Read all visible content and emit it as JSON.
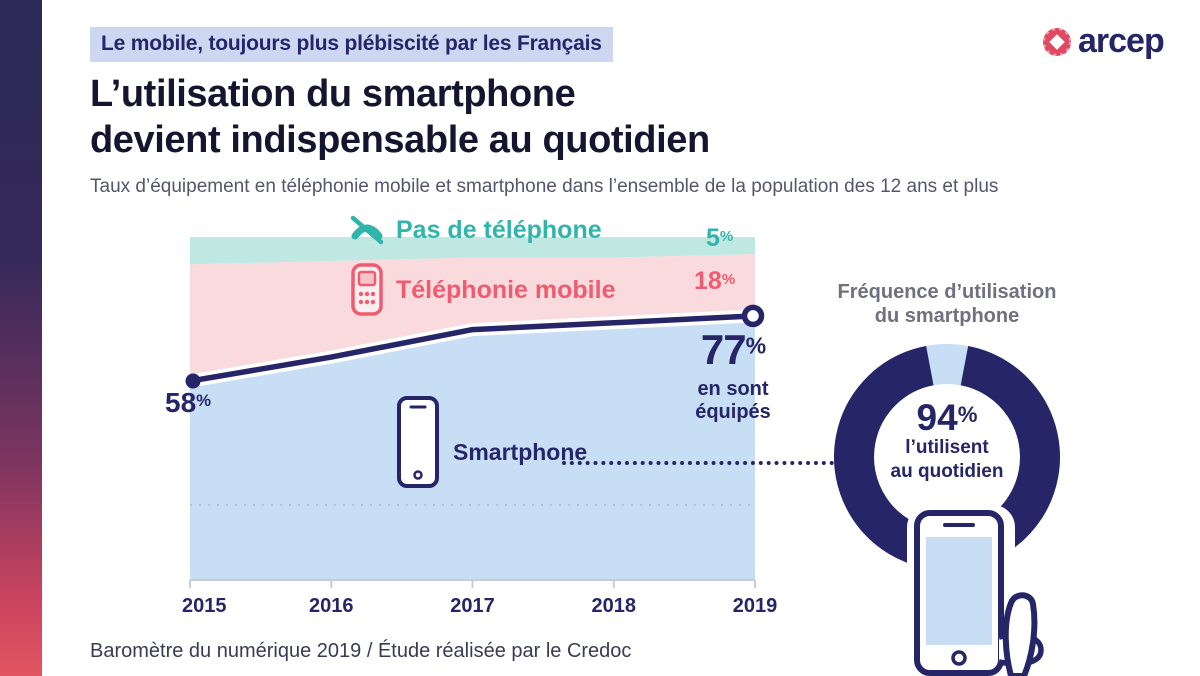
{
  "page": {
    "kicker": "Le mobile, toujours plus plébiscité par les Français",
    "logo_text": "arcep",
    "title_line1": "L’utilisation du smartphone",
    "title_line2": "devient indispensable au quotidien",
    "subtitle": "Taux d’équipement en téléphonie mobile et smartphone dans l’ensemble de la population des 12 ans et plus",
    "footer": "Baromètre du numérique 2019 / Étude réalisée par le Credoc"
  },
  "colors": {
    "navy": "#252567",
    "teal_text": "#2fb5ab",
    "teal_band": "#c0e8e2",
    "pink_text": "#ef5b70",
    "pink_band": "#f9dbde",
    "blue_band": "#c7def5",
    "kicker_bg": "#cdd7f1",
    "logo_red": "#e04962"
  },
  "chart_data": [
    {
      "type": "area",
      "stacked": true,
      "x": [
        "2015",
        "2016",
        "2017",
        "2018",
        "2019"
      ],
      "ylim": [
        0,
        100
      ],
      "series": [
        {
          "name": "Pas de téléphone",
          "values": [
            8,
            7,
            6,
            6,
            5
          ],
          "band_color": "#c0e8e2",
          "label_color": "#2fb5ab",
          "end_value": "5",
          "unit": "%"
        },
        {
          "name": "Téléphonie mobile",
          "values": [
            34,
            28,
            21,
            19,
            18
          ],
          "band_color": "#f9dbde",
          "label_color": "#ef5b70",
          "end_value": "18",
          "unit": "%"
        },
        {
          "name": "Smartphone",
          "values": [
            58,
            65,
            73,
            75,
            77
          ],
          "band_color": "#c7def5",
          "label_color": "#252567",
          "end_value": "77",
          "unit": "%"
        }
      ],
      "line": {
        "series": "Smartphone",
        "color": "#252567",
        "start_value": "58",
        "start_unit": "%",
        "end_value": "77",
        "end_unit": "%",
        "end_caption_line1": "en sont",
        "end_caption_line2": "équipés"
      }
    },
    {
      "type": "pie",
      "title_line1": "Fréquence d’utilisation",
      "title_line2": "du smartphone",
      "value_pct": 94,
      "center_value": "94",
      "center_unit": "%",
      "center_line1": "l’utilisent",
      "center_line2": "au quotidien",
      "main_color": "#252567",
      "rest_color": "#c7def5"
    }
  ]
}
